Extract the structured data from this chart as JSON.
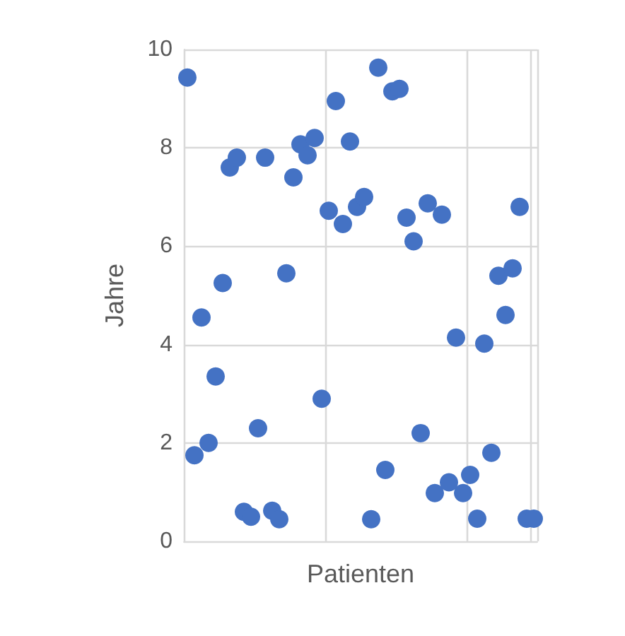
{
  "chart_data": {
    "type": "scatter",
    "xlabel": "Patienten",
    "ylabel": "Jahre",
    "categories": [
      null,
      null,
      null,
      null,
      null,
      null,
      null,
      null,
      null,
      null,
      null,
      null,
      null,
      null,
      null,
      null,
      null,
      null,
      null,
      null,
      null,
      null,
      null,
      null,
      null,
      null,
      null,
      null,
      null,
      null,
      null,
      null,
      null,
      null,
      null,
      null,
      null,
      null,
      null,
      null,
      null,
      null,
      null,
      null,
      null,
      null,
      null,
      null,
      null,
      null
    ],
    "values": [
      9.43,
      1.75,
      4.55,
      2.0,
      3.35,
      5.25,
      7.6,
      7.8,
      0.6,
      0.5,
      2.3,
      7.8,
      0.62,
      0.45,
      5.45,
      7.4,
      8.07,
      7.85,
      8.2,
      2.9,
      6.72,
      8.95,
      6.45,
      8.13,
      6.8,
      7.0,
      0.45,
      9.63,
      1.45,
      9.15,
      9.2,
      6.58,
      6.1,
      2.2,
      6.87,
      0.98,
      6.64,
      1.2,
      4.14,
      0.98,
      1.35,
      0.46,
      4.02,
      1.8,
      5.4,
      4.6,
      5.55,
      6.8,
      0.46,
      0.46
    ],
    "color": "#4472c4",
    "marker": "circle",
    "ylim": [
      0,
      10
    ],
    "yticks": [
      0,
      2,
      4,
      6,
      8,
      10
    ],
    "grid": true,
    "tick_labels": "y"
  }
}
